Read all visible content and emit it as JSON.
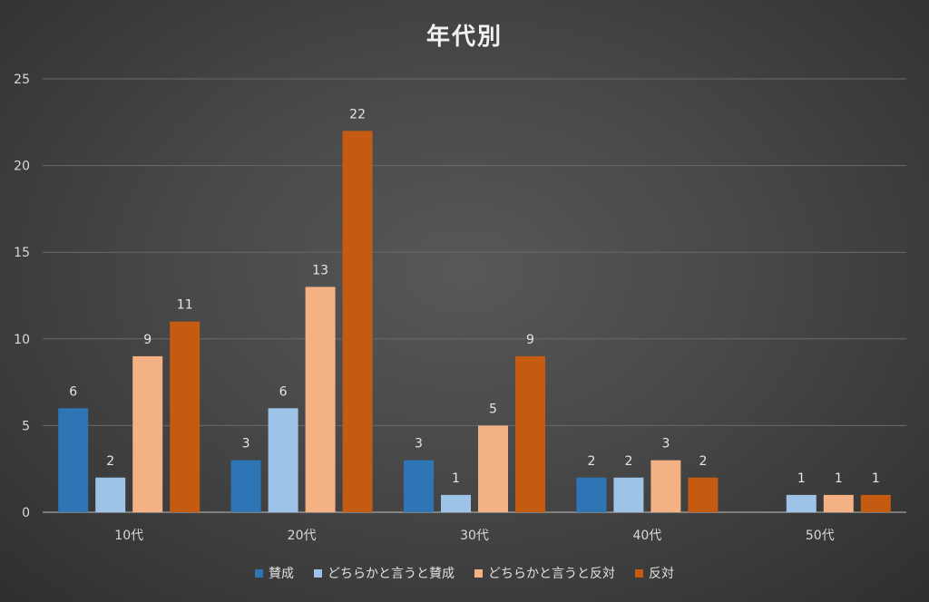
{
  "chart_data": {
    "type": "bar",
    "title": "年代別",
    "xlabel": "",
    "ylabel": "",
    "categories": [
      "10代",
      "20代",
      "30代",
      "40代",
      "50代"
    ],
    "ylim": [
      0,
      25
    ],
    "yticks": [
      0,
      5,
      10,
      15,
      20,
      25
    ],
    "grid": true,
    "legend_position": "bottom",
    "series": [
      {
        "name": "賛成",
        "color": "#2e75b6",
        "values": [
          6,
          3,
          3,
          2,
          null
        ]
      },
      {
        "name": "どちらかと言うと賛成",
        "color": "#9dc3e6",
        "values": [
          2,
          6,
          1,
          2,
          1
        ]
      },
      {
        "name": "どちらかと言うと反対",
        "color": "#f4b183",
        "values": [
          9,
          13,
          5,
          3,
          1
        ]
      },
      {
        "name": "反対",
        "color": "#c55a11",
        "values": [
          11,
          22,
          9,
          2,
          1
        ]
      }
    ]
  }
}
